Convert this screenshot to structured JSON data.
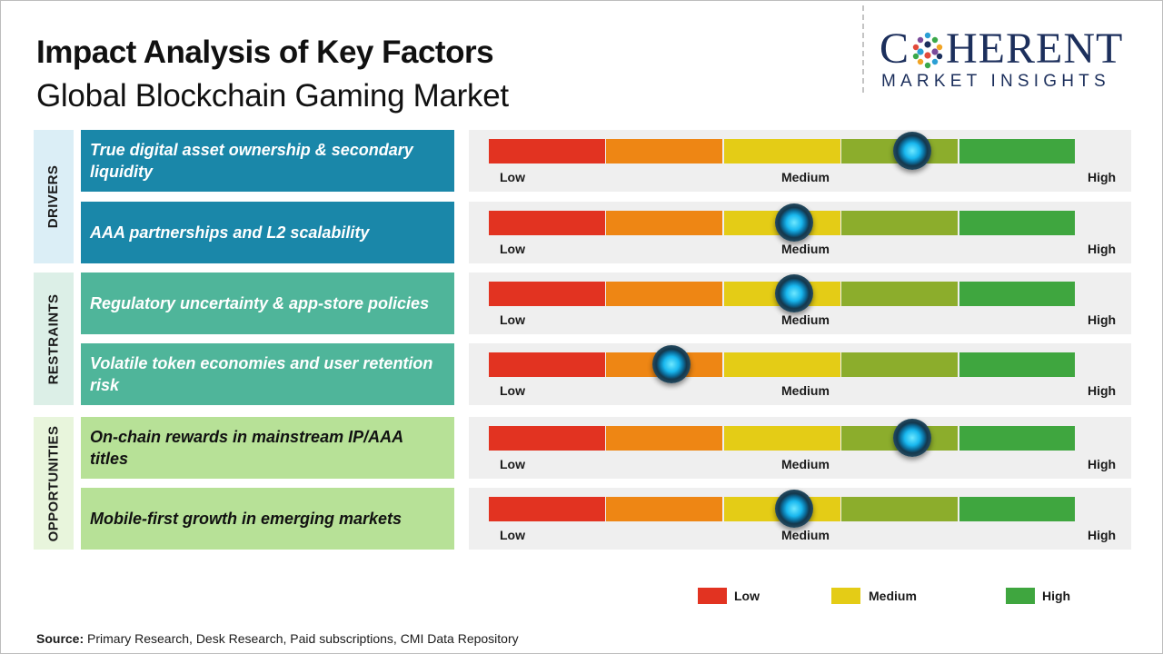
{
  "header": {
    "title": "Impact Analysis of Key Factors",
    "subtitle": "Global Blockchain Gaming Market"
  },
  "logo": {
    "line1_a": "C",
    "line1_b": "HERENT",
    "line2": "MARKET INSIGHTS"
  },
  "scale": {
    "low": "Low",
    "medium": "Medium",
    "high": "High",
    "segment_colors": [
      "#e23321",
      "#ee8614",
      "#e4cc16",
      "#8cad2c",
      "#3fa63f"
    ]
  },
  "categories": [
    {
      "label": "DRIVERS",
      "bg": "#dbeef6"
    },
    {
      "label": "RESTRAINTS",
      "bg": "#dcefe7"
    },
    {
      "label": "OPPORTUNITIES",
      "bg": "#e8f5dc"
    }
  ],
  "factors": [
    {
      "text": "True digital asset ownership & secondary liquidity",
      "category": "DRIVERS",
      "impact": 0.72,
      "bg": "#1a87a9",
      "color": "#ffffff"
    },
    {
      "text": "AAA partnerships and L2 scalability",
      "category": "DRIVERS",
      "impact": 0.52,
      "bg": "#1a87a9",
      "color": "#ffffff"
    },
    {
      "text": "Regulatory uncertainty & app-store policies",
      "category": "RESTRAINTS",
      "impact": 0.52,
      "bg": "#4fb59a",
      "color": "#ffffff"
    },
    {
      "text": "Volatile token economies and user retention risk",
      "category": "RESTRAINTS",
      "impact": 0.31,
      "bg": "#4fb59a",
      "color": "#ffffff"
    },
    {
      "text": "On-chain rewards in mainstream IP/AAA titles",
      "category": "OPPORTUNITIES",
      "impact": 0.72,
      "bg": "#b7e197",
      "color": "#111111"
    },
    {
      "text": "Mobile-first growth in emerging markets",
      "category": "OPPORTUNITIES",
      "impact": 0.52,
      "bg": "#b7e197",
      "color": "#111111"
    }
  ],
  "legend": [
    {
      "label": "Low",
      "color": "#e23321"
    },
    {
      "label": "Medium",
      "color": "#e4cc16"
    },
    {
      "label": "High",
      "color": "#3fa63f"
    }
  ],
  "source": {
    "label": "Source:",
    "text": " Primary Research, Desk Research, Paid subscriptions, CMI Data Repository"
  }
}
